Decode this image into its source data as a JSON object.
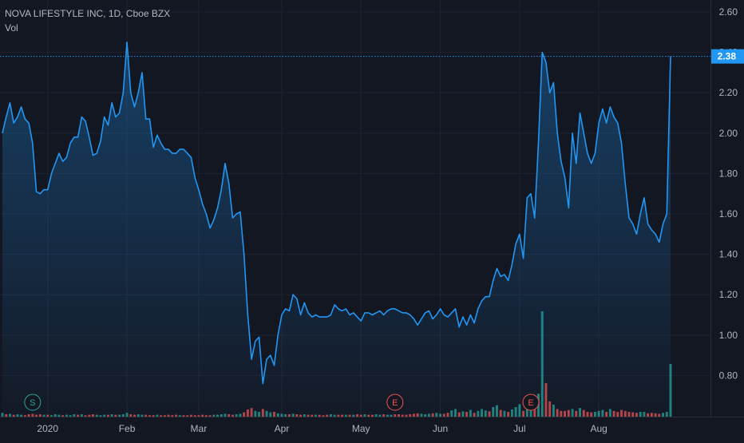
{
  "header": {
    "symbol_title": "NOVA LIFESTYLE INC, 1D, Cboe BZX",
    "volume_label": "Vol"
  },
  "price_axis": {
    "ticks": [
      "2.60",
      "2.40",
      "2.20",
      "2.00",
      "1.80",
      "1.60",
      "1.40",
      "1.20",
      "1.00",
      "0.80"
    ],
    "tick_values": [
      2.6,
      2.4,
      2.2,
      2.0,
      1.8,
      1.6,
      1.4,
      1.2,
      1.0,
      0.8
    ],
    "last_price": "2.38",
    "last_price_value": 2.38
  },
  "time_axis": {
    "labels": [
      "2020",
      "Feb",
      "Mar",
      "Apr",
      "May",
      "Jun",
      "Jul",
      "Aug"
    ],
    "label_index": [
      12,
      33,
      52,
      74,
      95,
      116,
      137,
      158
    ]
  },
  "events": [
    {
      "label": "S",
      "type": "split",
      "index": 8,
      "color": "#26a69a"
    },
    {
      "label": "E",
      "type": "earnings",
      "index": 104,
      "color": "#ef5350"
    },
    {
      "label": "E",
      "type": "earnings",
      "index": 140,
      "color": "#ef5350"
    }
  ],
  "colors": {
    "background": "#131722",
    "grid": "#1e2230",
    "line": "#2196f3",
    "axis_text": "#b2b5be",
    "volume_up": "#26a69a",
    "volume_down": "#ef5350",
    "price_label_bg": "#2196f3"
  },
  "chart_data": {
    "type": "area",
    "title": "NOVA LIFESTYLE INC, 1D, Cboe BZX",
    "ylim": [
      0.6,
      2.65
    ],
    "grid": true,
    "series": [
      {
        "values": [
          2.0,
          2.08,
          2.15,
          2.05,
          2.08,
          2.13,
          2.07,
          2.05,
          1.95,
          1.71,
          1.7,
          1.72,
          1.72,
          1.8,
          1.85,
          1.9,
          1.86,
          1.88,
          1.95,
          1.98,
          1.98,
          2.08,
          2.06,
          1.98,
          1.89,
          1.9,
          1.96,
          2.08,
          2.04,
          2.15,
          2.08,
          2.1,
          2.2,
          2.45,
          2.2,
          2.13,
          2.2,
          2.3,
          2.07,
          2.07,
          1.93,
          1.99,
          1.95,
          1.92,
          1.92,
          1.9,
          1.9,
          1.92,
          1.92,
          1.9,
          1.88,
          1.78,
          1.72,
          1.65,
          1.6,
          1.53,
          1.57,
          1.63,
          1.72,
          1.85,
          1.75,
          1.58,
          1.6,
          1.61,
          1.4,
          1.1,
          0.88,
          0.97,
          0.99,
          0.76,
          0.88,
          0.9,
          0.85,
          1.0,
          1.1,
          1.13,
          1.12,
          1.2,
          1.18,
          1.1,
          1.16,
          1.11,
          1.09,
          1.1,
          1.09,
          1.09,
          1.09,
          1.1,
          1.15,
          1.13,
          1.12,
          1.13,
          1.1,
          1.11,
          1.09,
          1.07,
          1.11,
          1.11,
          1.1,
          1.11,
          1.12,
          1.1,
          1.12,
          1.13,
          1.13,
          1.12,
          1.11,
          1.11,
          1.1,
          1.08,
          1.05,
          1.08,
          1.11,
          1.12,
          1.08,
          1.1,
          1.13,
          1.1,
          1.09,
          1.11,
          1.13,
          1.04,
          1.09,
          1.05,
          1.1,
          1.06,
          1.13,
          1.17,
          1.19,
          1.19,
          1.27,
          1.33,
          1.29,
          1.3,
          1.27,
          1.35,
          1.45,
          1.5,
          1.38,
          1.68,
          1.7,
          1.58,
          1.95,
          2.4,
          2.35,
          2.2,
          2.25,
          2.0,
          1.86,
          1.78,
          1.63,
          2.0,
          1.85,
          2.1,
          2.0,
          1.9,
          1.85,
          1.9,
          2.05,
          2.12,
          2.05,
          2.13,
          2.08,
          2.05,
          1.95,
          1.75,
          1.58,
          1.55,
          1.5,
          1.6,
          1.68,
          1.55,
          1.52,
          1.5,
          1.46,
          1.55,
          1.6,
          2.38
        ]
      }
    ],
    "volume": [
      0.8,
      0.5,
      0.6,
      0.4,
      0.5,
      0.4,
      0.3,
      0.5,
      0.6,
      0.4,
      0.5,
      0.4,
      0.4,
      0.3,
      0.5,
      0.4,
      0.3,
      0.4,
      0.3,
      0.5,
      0.4,
      0.5,
      0.3,
      0.4,
      0.5,
      0.4,
      0.3,
      0.4,
      0.4,
      0.5,
      0.4,
      0.4,
      0.5,
      0.8,
      0.5,
      0.4,
      0.5,
      0.4,
      0.4,
      0.3,
      0.3,
      0.4,
      0.3,
      0.3,
      0.4,
      0.3,
      0.4,
      0.3,
      0.3,
      0.3,
      0.4,
      0.3,
      0.3,
      0.4,
      0.3,
      0.3,
      0.4,
      0.4,
      0.5,
      0.6,
      0.5,
      0.4,
      0.5,
      0.6,
      0.9,
      1.5,
      1.8,
      1.2,
      1.0,
      1.6,
      1.2,
      0.9,
      1.0,
      0.7,
      0.6,
      0.5,
      0.5,
      0.6,
      0.5,
      0.4,
      0.5,
      0.4,
      0.4,
      0.4,
      0.4,
      0.3,
      0.4,
      0.5,
      0.4,
      0.4,
      0.4,
      0.4,
      0.4,
      0.4,
      0.5,
      0.4,
      0.5,
      0.4,
      0.4,
      0.5,
      0.4,
      0.5,
      0.4,
      0.4,
      0.5,
      0.5,
      0.4,
      0.4,
      0.5,
      0.6,
      0.7,
      0.6,
      0.5,
      0.6,
      0.7,
      0.8,
      0.6,
      0.6,
      0.8,
      1.3,
      1.6,
      0.9,
      1.1,
      1.0,
      1.4,
      0.8,
      1.2,
      1.6,
      1.3,
      1.1,
      2.0,
      2.4,
      1.4,
      1.2,
      1.0,
      1.5,
      2.0,
      2.6,
      1.2,
      4.2,
      3.6,
      2.0,
      4.8,
      22.0,
      7.0,
      3.2,
      2.5,
      1.6,
      1.2,
      1.2,
      1.4,
      1.6,
      1.2,
      1.8,
      1.4,
      1.0,
      0.9,
      1.0,
      1.2,
      1.4,
      1.0,
      1.6,
      1.2,
      1.0,
      1.4,
      1.2,
      1.0,
      0.9,
      0.8,
      1.0,
      1.0,
      0.7,
      0.8,
      0.7,
      0.6,
      0.8,
      1.0,
      11.0
    ],
    "volume_up": [
      1,
      0,
      1,
      0,
      1,
      1,
      0,
      0,
      0,
      0,
      0,
      1,
      0,
      1,
      1,
      1,
      0,
      1,
      1,
      1,
      0,
      1,
      0,
      0,
      0,
      1,
      1,
      1,
      0,
      1,
      0,
      1,
      1,
      1,
      0,
      0,
      1,
      1,
      0,
      0,
      0,
      1,
      0,
      0,
      0,
      0,
      0,
      1,
      0,
      0,
      0,
      0,
      0,
      0,
      0,
      0,
      1,
      1,
      1,
      1,
      0,
      0,
      1,
      1,
      0,
      0,
      0,
      1,
      1,
      0,
      1,
      1,
      0,
      1,
      1,
      1,
      0,
      1,
      0,
      0,
      1,
      0,
      0,
      1,
      0,
      0,
      0,
      1,
      1,
      0,
      0,
      1,
      0,
      1,
      0,
      0,
      1,
      0,
      0,
      1,
      1,
      0,
      1,
      1,
      0,
      0,
      0,
      0,
      0,
      0,
      0,
      1,
      1,
      1,
      0,
      1,
      1,
      0,
      0,
      1,
      1,
      0,
      1,
      0,
      1,
      0,
      1,
      1,
      1,
      0,
      1,
      1,
      0,
      1,
      0,
      1,
      1,
      1,
      0,
      1,
      1,
      0,
      1,
      1,
      0,
      0,
      1,
      0,
      0,
      0,
      0,
      1,
      0,
      1,
      0,
      0,
      0,
      1,
      1,
      1,
      0,
      1,
      0,
      0,
      0,
      0,
      0,
      0,
      0,
      1,
      1,
      0,
      0,
      0,
      0,
      1,
      1,
      1
    ]
  }
}
